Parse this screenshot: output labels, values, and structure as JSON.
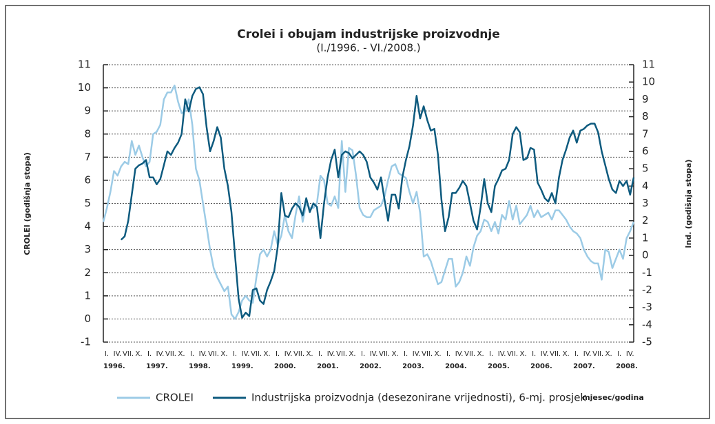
{
  "chart_data": {
    "type": "line",
    "title": "Crolei i obujam industrijske proizvodnje",
    "subtitle": "(I./1996. - VI./2008.)",
    "y_label": "CROLEI (godišnja stopa)",
    "y2_label": "Ind. (godišnja stopa)",
    "x_label": "mjesec/godina",
    "categories": [
      "I.",
      null,
      null,
      "IV.",
      null,
      null,
      "VII.",
      null,
      null,
      "X.",
      null,
      null,
      "I.",
      null,
      null,
      "IV.",
      null,
      null,
      "VII.",
      null,
      null,
      "X.",
      null,
      null,
      "I.",
      null,
      null,
      "IV.",
      null,
      null,
      "VII.",
      null,
      null,
      "X.",
      null,
      null,
      "I.",
      null,
      null,
      "IV.",
      null,
      null,
      "VII.",
      null,
      null,
      "X.",
      null,
      null,
      "I.",
      null,
      null,
      "IV.",
      null,
      null,
      "VII.",
      null,
      null,
      "X.",
      null,
      null,
      "I.",
      null,
      null,
      "IV.",
      null,
      null,
      "VII.",
      null,
      null,
      "X.",
      null,
      null,
      "I.",
      null,
      null,
      "IV.",
      null,
      null,
      "VII.",
      null,
      null,
      "X.",
      null,
      null,
      "I.",
      null,
      null,
      "IV.",
      null,
      null,
      "VII.",
      null,
      null,
      "X.",
      null,
      null,
      "I.",
      null,
      null,
      "IV.",
      null,
      null,
      "VII.",
      null,
      null,
      "X.",
      null,
      null,
      "I.",
      null,
      null,
      "IV.",
      null,
      null,
      "VII.",
      null,
      null,
      "X.",
      null,
      null,
      "I.",
      null,
      null,
      "IV.",
      null,
      null,
      "VII.",
      null,
      null,
      "X.",
      null,
      null,
      "I.",
      null,
      null,
      "IV.",
      null,
      null,
      "VII.",
      null,
      null,
      "X.",
      null,
      null,
      "I.",
      null,
      null,
      "IV.",
      null,
      null
    ],
    "year_labels": [
      "1996.",
      "1997.",
      "1998.",
      "1999.",
      "2000.",
      "2001.",
      "2002.",
      "2003.",
      "2004.",
      "2005.",
      "2006.",
      "2007.",
      "2008."
    ],
    "ylim": [
      -1,
      11
    ],
    "yticks": [
      -1,
      0,
      1,
      2,
      3,
      4,
      5,
      6,
      7,
      8,
      9,
      10,
      11
    ],
    "y2lim": [
      -5,
      11
    ],
    "y2ticks": [
      -5,
      -4,
      -3,
      -2,
      -1,
      0,
      1,
      2,
      3,
      4,
      5,
      6,
      7,
      8,
      9,
      10,
      11
    ],
    "grid": true,
    "legend": "bottom",
    "series": [
      {
        "name": "CROLEI",
        "color": "#9ccbe6",
        "values": [
          4.2,
          4.8,
          5.5,
          6.4,
          6.2,
          6.6,
          6.8,
          6.7,
          7.7,
          7.1,
          7.5,
          7.0,
          6.6,
          6.8,
          8.0,
          8.1,
          8.4,
          9.5,
          9.8,
          9.8,
          10.1,
          9.4,
          8.9,
          9.0,
          9.5,
          8.4,
          6.5,
          6.0,
          5.0,
          4.0,
          3.0,
          2.2,
          1.8,
          1.5,
          1.2,
          1.4,
          0.2,
          0,
          0.3,
          0.8,
          1.0,
          0.8,
          0.7,
          1.8,
          2.8,
          3.0,
          2.7,
          3.0,
          3.8,
          3.2,
          3.6,
          4.5,
          3.8,
          3.5,
          4.5,
          5.3,
          4.2,
          5.0,
          4.8,
          4.8,
          5.0,
          6.2,
          6.0,
          5.0,
          4.9,
          5.3,
          4.8,
          7.7,
          5.5,
          7.4,
          7.3,
          6.2,
          4.8,
          4.5,
          4.4,
          4.4,
          4.7,
          4.8,
          4.9,
          5.3,
          6.0,
          6.6,
          6.7,
          6.3,
          6.2,
          6.1,
          5.5,
          5.0,
          5.5,
          4.6,
          2.7,
          2.8,
          2.5,
          2.0,
          1.5,
          1.6,
          2.1,
          2.6,
          2.6,
          1.4,
          1.6,
          2.0,
          2.7,
          2.3,
          3.1,
          3.6,
          3.8,
          4.3,
          4.2,
          3.8,
          4.2,
          3.7,
          4.5,
          4.3,
          5.1,
          4.3,
          4.9,
          4.1,
          4.3,
          4.5,
          4.9,
          4.4,
          4.7,
          4.4,
          4.5,
          4.6,
          4.3,
          4.7,
          4.7,
          4.5,
          4.3,
          4.0,
          3.8,
          3.7,
          3.5,
          3.0,
          2.7,
          2.5,
          2.4,
          2.4,
          1.7,
          3.0,
          2.9,
          2.2,
          2.6,
          3.0,
          2.6,
          3.5,
          3.8,
          4.2
        ]
      },
      {
        "name": "Industrijska proizvodnja (desezonirane vrijednosti), 6-mj. prosjek",
        "color": "#0d5a7e",
        "axis": "y2",
        "values": [
          null,
          null,
          null,
          null,
          null,
          0.9,
          1.1,
          2.0,
          3.5,
          5.0,
          5.2,
          5.3,
          5.5,
          4.5,
          4.5,
          4.1,
          4.4,
          5.2,
          6.0,
          5.8,
          6.2,
          6.5,
          7.0,
          9.0,
          8.3,
          9.2,
          9.6,
          9.7,
          9.3,
          7.4,
          6.0,
          6.6,
          7.4,
          6.8,
          5.0,
          4.0,
          2.5,
          0.0,
          -2.5,
          -3.6,
          -3.3,
          -3.5,
          -2.0,
          -1.9,
          -2.6,
          -2.8,
          -2.0,
          -1.5,
          -0.9,
          0.5,
          3.6,
          2.3,
          2.2,
          2.7,
          3.0,
          2.8,
          2.3,
          3.3,
          2.5,
          3.0,
          2.8,
          1.0,
          3.0,
          4.5,
          5.5,
          6.1,
          4.5,
          5.8,
          6.0,
          5.9,
          5.6,
          5.8,
          6.0,
          5.8,
          5.4,
          4.5,
          4.2,
          3.8,
          4.5,
          3.2,
          2.0,
          3.5,
          3.5,
          2.7,
          4.5,
          5.5,
          6.3,
          7.5,
          9.2,
          7.9,
          8.6,
          7.8,
          7.2,
          7.3,
          5.8,
          3.2,
          1.4,
          2.2,
          3.6,
          3.6,
          3.9,
          4.3,
          4.0,
          3.0,
          2.0,
          1.5,
          2.8,
          4.4,
          3.0,
          2.5,
          4.0,
          4.4,
          4.9,
          5.0,
          5.5,
          7.0,
          7.4,
          7.1,
          5.5,
          5.6,
          6.2,
          6.1,
          4.2,
          3.8,
          3.3,
          3.1,
          3.6,
          3.0,
          4.5,
          5.5,
          6.1,
          6.8,
          7.2,
          6.5,
          7.2,
          7.3,
          7.5,
          7.6,
          7.6,
          7.1,
          6.0,
          5.2,
          4.4,
          3.8,
          3.6,
          4.3,
          4.0,
          4.3,
          3.5,
          4.5
        ]
      }
    ]
  }
}
